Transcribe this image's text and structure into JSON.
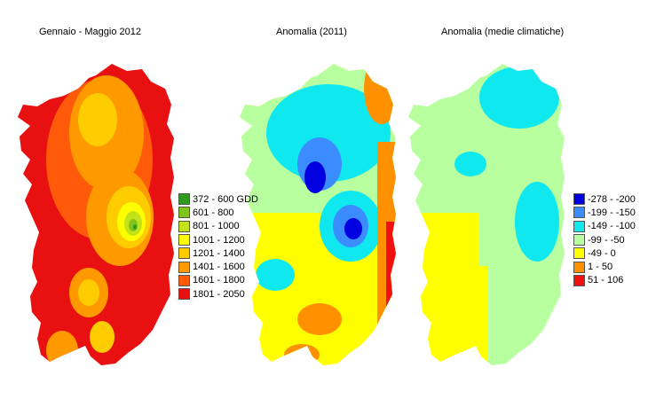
{
  "maps": [
    {
      "title": "Gennaio - Maggio 2012",
      "legend": [
        {
          "label": "372 - 600 GDD",
          "color": "#2e9a1e"
        },
        {
          "label": "601 - 800",
          "color": "#80c41c"
        },
        {
          "label": "801 - 1000",
          "color": "#c4e21a"
        },
        {
          "label": "1001 - 1200",
          "color": "#ffff00"
        },
        {
          "label": "1201 - 1400",
          "color": "#ffcc00"
        },
        {
          "label": "1401 - 1600",
          "color": "#ff9900"
        },
        {
          "label": "1601 - 1800",
          "color": "#ff5a0a"
        },
        {
          "label": "1801 - 2050",
          "color": "#e81010"
        }
      ]
    },
    {
      "title": "Anomalia (2011)"
    },
    {
      "title": "Anomalia (medie climatiche)",
      "legend": [
        {
          "label": "-278 - -200",
          "color": "#0000e0"
        },
        {
          "label": "-199 - -150",
          "color": "#3a8cff"
        },
        {
          "label": "-149 - -100",
          "color": "#10e8f0"
        },
        {
          "label": "-99 - -50",
          "color": "#b8ffa0"
        },
        {
          "label": "-49 - 0",
          "color": "#ffff00"
        },
        {
          "label": "1 - 50",
          "color": "#ff9000"
        },
        {
          "label": "51 - 106",
          "color": "#f01010"
        }
      ]
    }
  ]
}
